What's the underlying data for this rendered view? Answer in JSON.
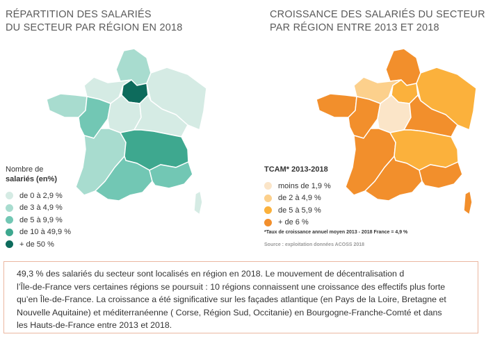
{
  "left_panel": {
    "title_line1": "RÉPARTITION DES SALARIÉS",
    "title_line2": "DU SECTEUR PAR RÉGION EN 2018",
    "legend_title_line1": "Nombre de",
    "legend_title_line2": "salariés (en%)",
    "legend": [
      {
        "label": "de 0 à 2,9 %",
        "color": "#d5ebe4"
      },
      {
        "label": "de 3 à 4,9 %",
        "color": "#a8dccf"
      },
      {
        "label": "de 5 à 9,9 %",
        "color": "#72c7b4"
      },
      {
        "label": "de 10 à 49,9 %",
        "color": "#3ea88f"
      },
      {
        "label": "+ de 50 %",
        "color": "#0d6b5c"
      }
    ]
  },
  "right_panel": {
    "title_line1": "CROISSANCE DES SALARIÉS DU SECTEUR",
    "title_line2": "PAR RÉGION ENTRE 2013 ET 2018",
    "legend_title": "TCAM* 2013-2018",
    "legend": [
      {
        "label": "moins de 1,9 %",
        "color": "#fbe5c8"
      },
      {
        "label": "de 2 à 4,9 %",
        "color": "#fcd08c"
      },
      {
        "label": "de 5 à 5,9 %",
        "color": "#fbb13c"
      },
      {
        "label": "+ de 6 %",
        "color": "#f28f2c"
      }
    ],
    "footnote": "*Taux de croissance annuel moyen 2013 - 2018 France = 4,9 %",
    "source": "Source : exploitation données ACOSS 2018"
  },
  "text_box": {
    "line1": "49,3 % des salariés du secteur sont localisés en région en 2018. Le mouvement de décentralisation d",
    "line2": "l’Île-de-France vers certaines régions se poursuit : 10 régions connaissent une croissance des effectifs plus forte",
    "line3": "qu’en Île-de-France. La croissance a été significative sur les façades atlantique (en Pays de la Loire, Bretagne et",
    "line4": "Nouvelle Aquitaine) et méditerranéenne ( Corse, Région Sud, Occitanie)  en Bourgogne-Franche-Comté et dans",
    "line5": "les Hauts-de-France entre 2013 et 2018."
  }
}
